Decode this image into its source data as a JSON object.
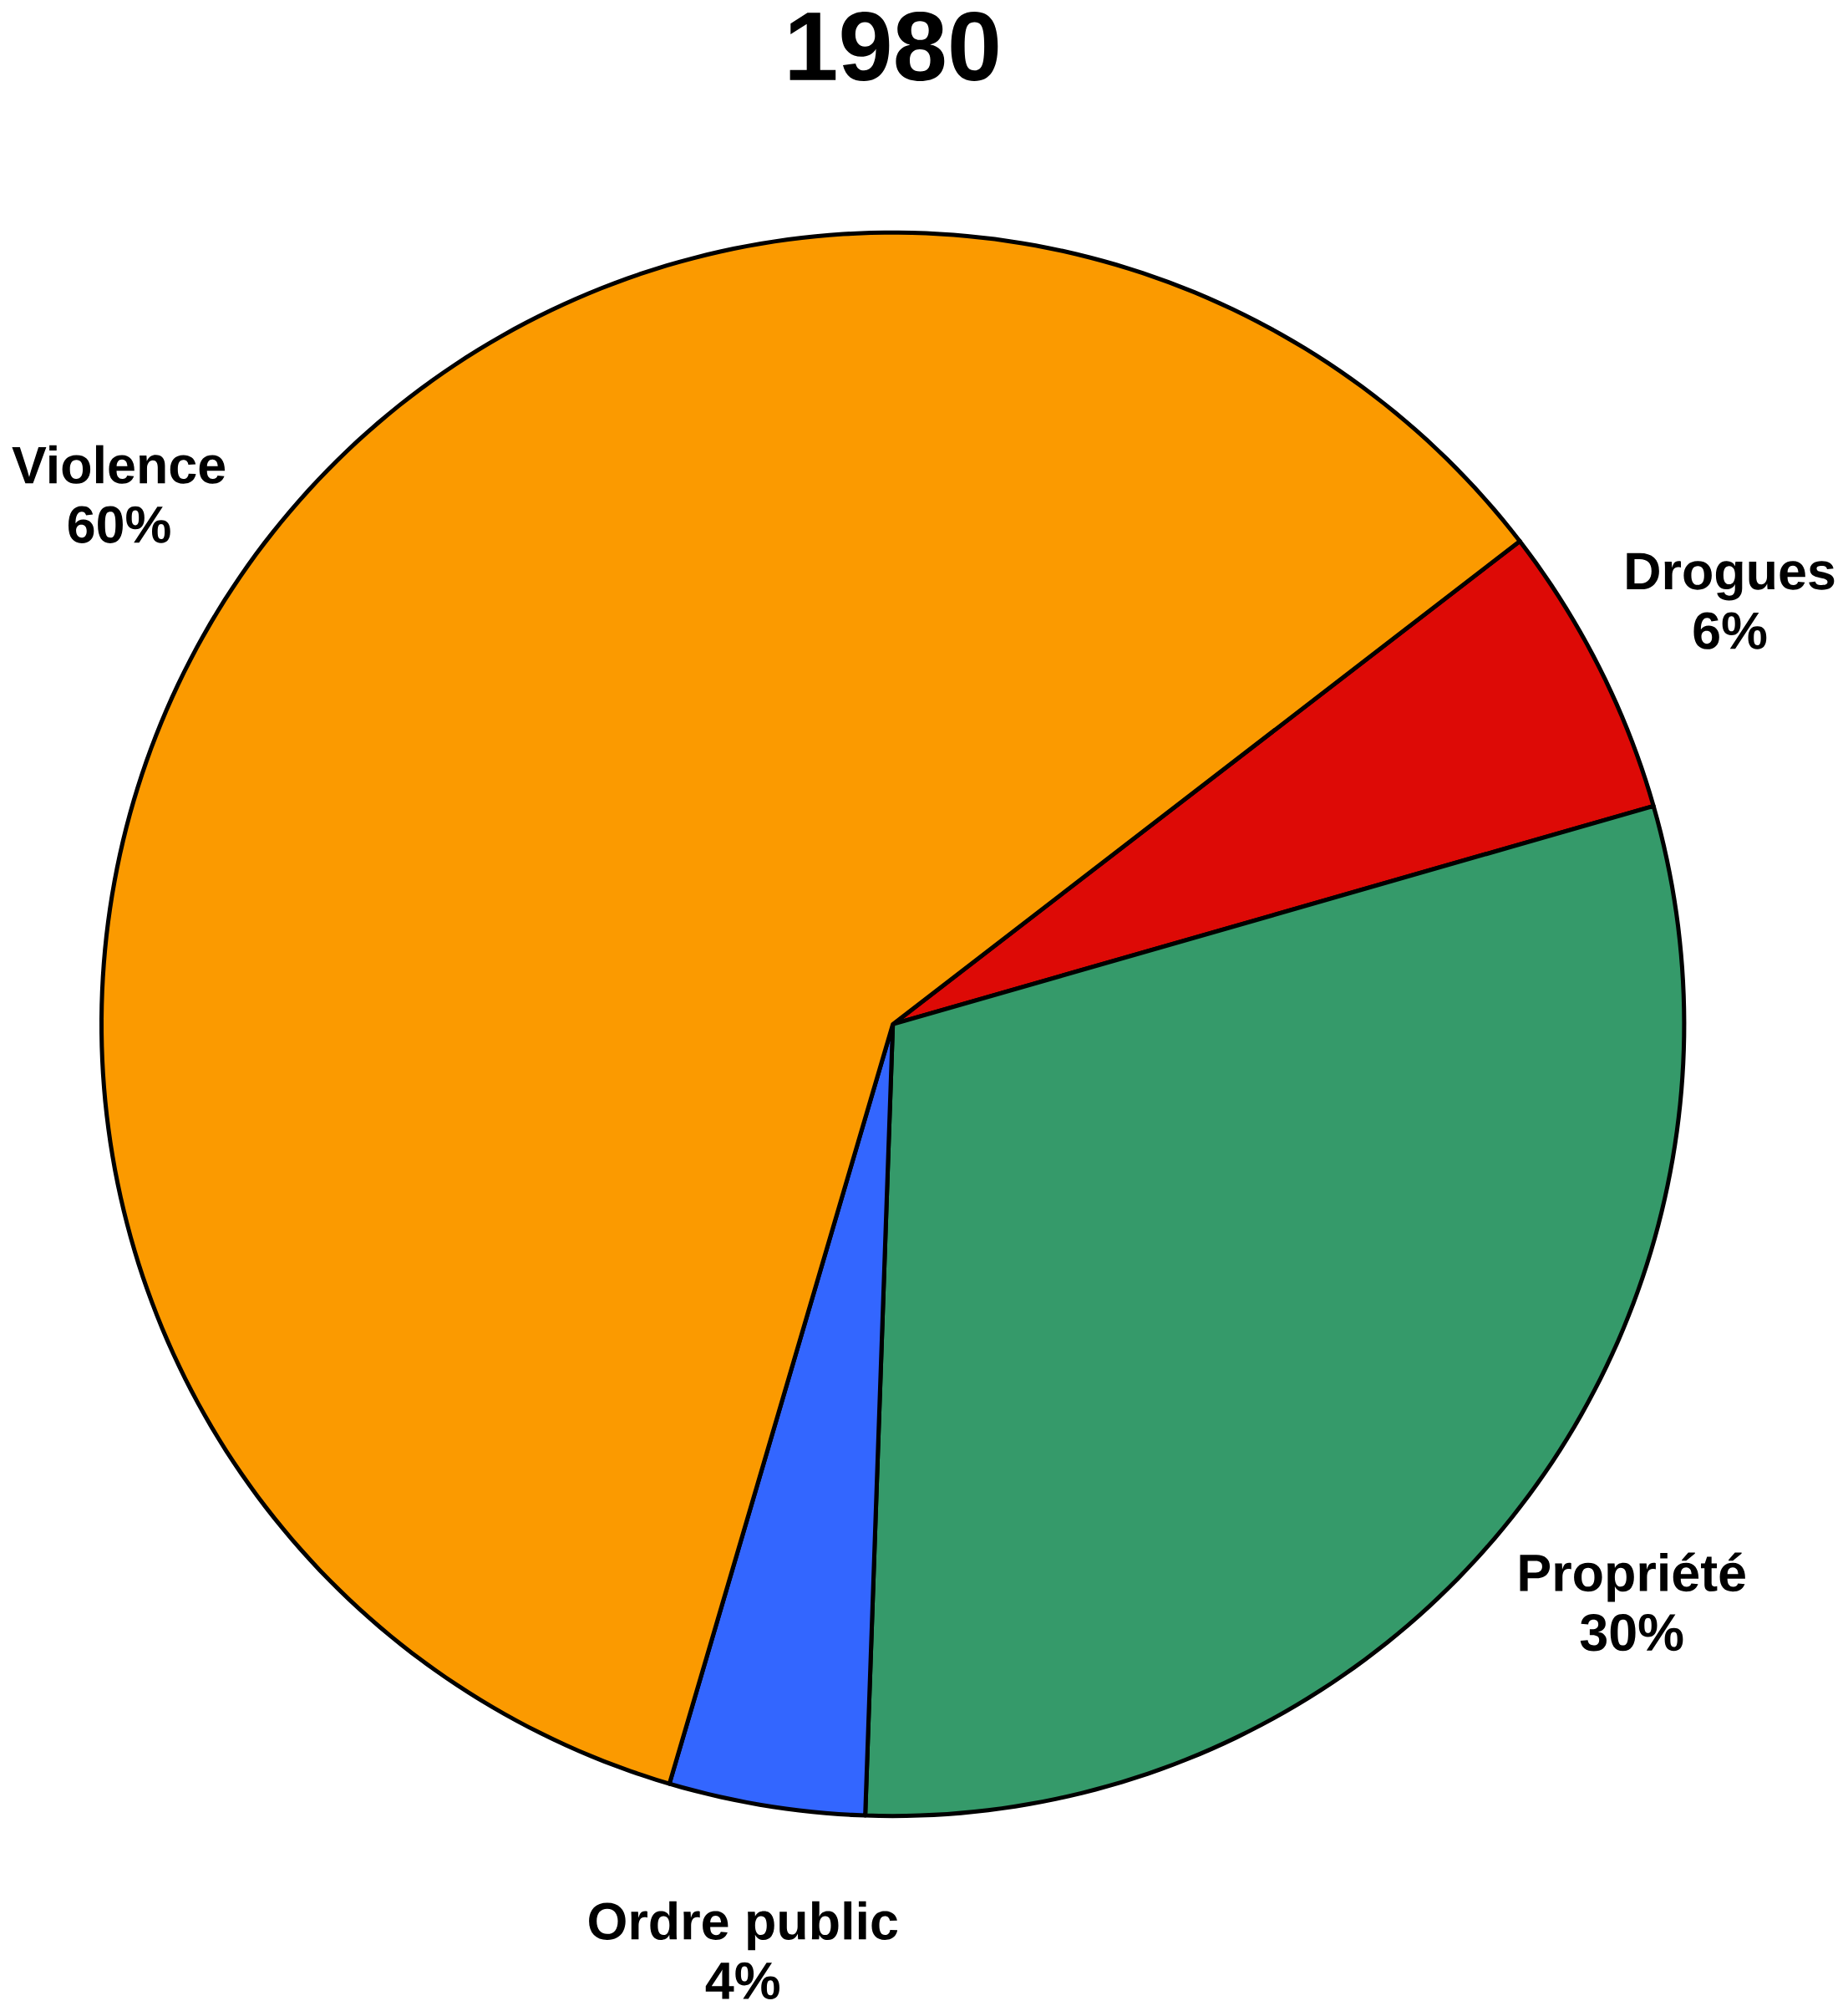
{
  "chart_data": {
    "type": "pie",
    "title": "1980",
    "categories": [
      "Drogues",
      "Propriété",
      "Ordre public",
      "Violence"
    ],
    "values": [
      6,
      30,
      4,
      60
    ],
    "value_labels": [
      "6%",
      "30%",
      "4%",
      "60%"
    ],
    "colors": [
      "#dd0a06",
      "#359a6a",
      "#3366ff",
      "#fb9a00"
    ]
  }
}
